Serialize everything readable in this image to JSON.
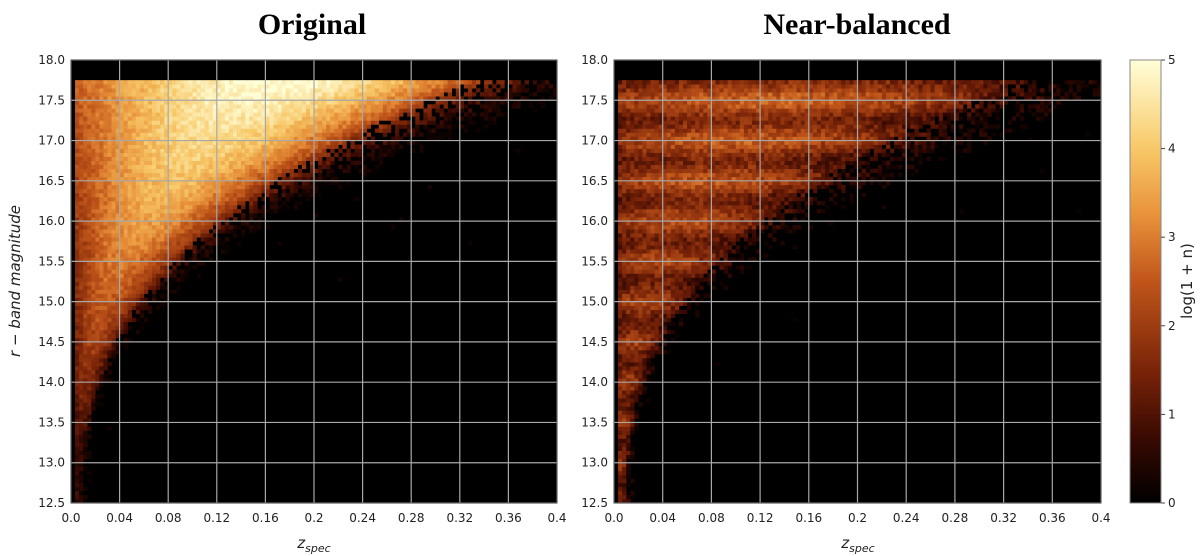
{
  "chart_data": [
    {
      "type": "heatmap",
      "title": "Original",
      "xlabel_main": "z",
      "xlabel_sub": "spec",
      "ylabel": "r − band magnitude",
      "xlim": [
        0.0,
        0.4
      ],
      "ylim": [
        12.5,
        18.0
      ],
      "xticks": [
        "0.0",
        "0.04",
        "0.08",
        "0.12",
        "0.16",
        "0.2",
        "0.24",
        "0.28",
        "0.32",
        "0.36",
        "0.4"
      ],
      "yticks": [
        "12.5",
        "13.0",
        "13.5",
        "14.0",
        "14.5",
        "15.0",
        "15.5",
        "16.0",
        "16.5",
        "17.0",
        "17.5",
        "18.0"
      ],
      "grid": true,
      "density_peak": {
        "z": 0.1,
        "mag": 17.5,
        "value": 5
      },
      "magnitude_limit": 17.77
    },
    {
      "type": "heatmap",
      "title": "Near-balanced",
      "xlabel_main": "z",
      "xlabel_sub": "spec",
      "xlim": [
        0.0,
        0.4
      ],
      "ylim": [
        12.5,
        18.0
      ],
      "xticks": [
        "0.0",
        "0.04",
        "0.08",
        "0.12",
        "0.16",
        "0.2",
        "0.24",
        "0.28",
        "0.32",
        "0.36",
        "0.4"
      ],
      "yticks": [
        "12.5",
        "13.0",
        "13.5",
        "14.0",
        "14.5",
        "15.0",
        "15.5",
        "16.0",
        "16.5",
        "17.0",
        "17.5",
        "18.0"
      ],
      "grid": true,
      "density_peak": {
        "z": 0.06,
        "mag": 17.6,
        "value": 3
      },
      "magnitude_limit": 17.77
    }
  ],
  "colorbar": {
    "label": "log(1 + n)",
    "ticks": [
      "0",
      "1",
      "2",
      "3",
      "4",
      "5"
    ],
    "range": [
      0,
      5
    ],
    "colors": [
      "#000000",
      "#3a0a02",
      "#7a2408",
      "#c0551a",
      "#e8923a",
      "#f8c868",
      "#ffffd8"
    ]
  }
}
